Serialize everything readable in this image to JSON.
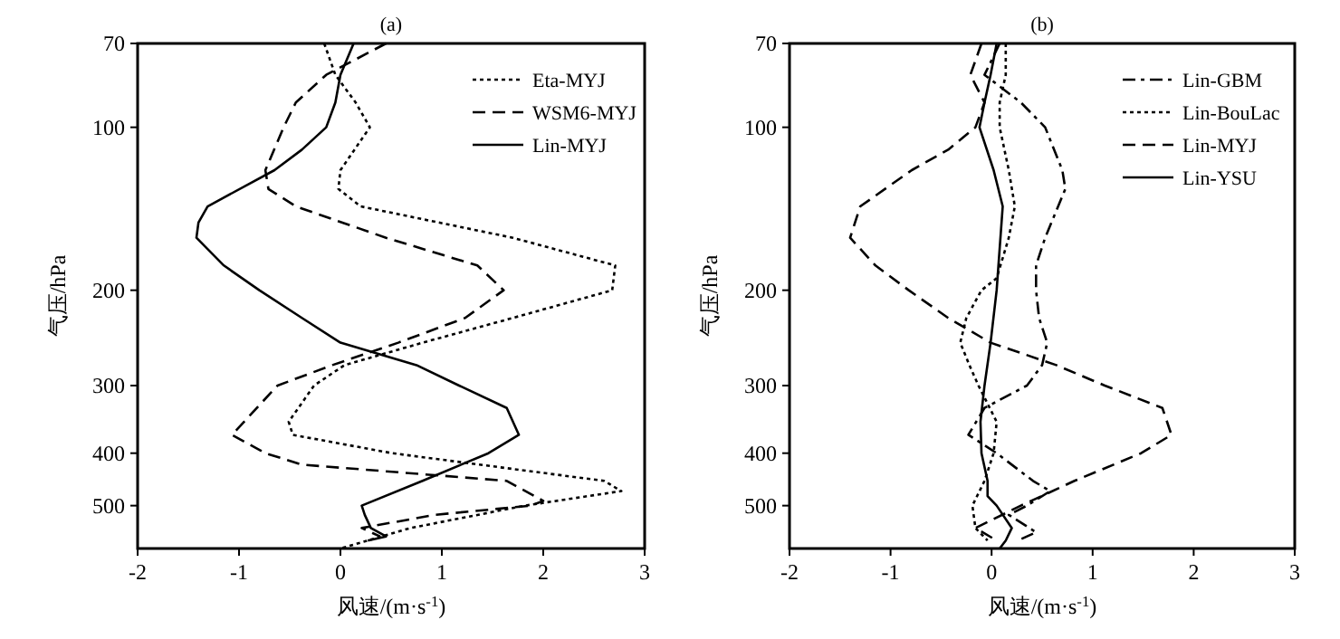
{
  "chart_data": [
    {
      "type": "line",
      "title": "(a)",
      "xlabel": "风速/(m·s$^{-1}$)",
      "ylabel": "气压/hPa",
      "xlim": [
        -2,
        3
      ],
      "xticks": [
        -2,
        -1,
        0,
        1,
        2,
        3
      ],
      "ylim": [
        600,
        70
      ],
      "yticks": [
        70,
        100,
        200,
        300,
        400,
        500
      ],
      "log": "y",
      "legend": "top right",
      "series": [
        {
          "name": "Eta-MYJ",
          "color": "#000000",
          "line_style": "dotted",
          "x": [
            -0.16,
            -0.05,
            0.15,
            0.29,
            0.0,
            -0.02,
            0.2,
            1.7,
            2.71,
            2.68,
            1.7,
            0.81,
            0.04,
            -0.26,
            -0.51,
            -0.47,
            0.51,
            2.6,
            2.77,
            1.82,
            0.69,
            0.27,
            0.0
          ],
          "values": [
            70,
            80,
            90,
            100,
            120,
            130,
            140,
            160,
            180,
            200,
            225,
            250,
            275,
            300,
            350,
            370,
            400,
            450,
            470,
            500,
            550,
            580,
            600
          ]
        },
        {
          "name": "WSM6-MYJ",
          "color": "#000000",
          "line_style": "dashed",
          "x": [
            0.45,
            -0.14,
            -0.44,
            -0.56,
            -0.74,
            -0.71,
            -0.44,
            0.45,
            1.35,
            1.61,
            1.23,
            0.57,
            -0.08,
            -0.62,
            -1.07,
            -0.74,
            -0.38,
            1.64,
            2.0,
            1.88,
            0.93,
            0.21,
            0.39
          ],
          "values": [
            70,
            80,
            90,
            100,
            120,
            130,
            140,
            160,
            180,
            200,
            225,
            250,
            275,
            300,
            370,
            400,
            420,
            450,
            490,
            500,
            520,
            550,
            570
          ]
        },
        {
          "name": "Lin-MYJ",
          "color": "#000000",
          "line_style": "solid",
          "x": [
            0.13,
            0.0,
            -0.05,
            -0.14,
            -0.38,
            -0.65,
            -1.31,
            -1.4,
            -1.42,
            -1.15,
            -0.8,
            -0.38,
            0.0,
            0.75,
            1.17,
            1.64,
            1.76,
            1.46,
            0.81,
            0.21,
            0.24,
            0.3,
            0.45,
            0.27
          ],
          "values": [
            70,
            80,
            90,
            100,
            110,
            120,
            140,
            150,
            160,
            180,
            200,
            225,
            250,
            275,
            300,
            330,
            370,
            400,
            450,
            500,
            520,
            550,
            570,
            580
          ]
        }
      ]
    },
    {
      "type": "line",
      "title": "(b)",
      "xlabel": "风速/(m·s$^{-1}$)",
      "ylabel": "气压/hPa",
      "xlim": [
        -2,
        3
      ],
      "xticks": [
        -2,
        -1,
        0,
        1,
        2,
        3
      ],
      "ylim": [
        600,
        70
      ],
      "yticks": [
        70,
        100,
        200,
        300,
        400,
        500
      ],
      "log": "y",
      "legend": "top right",
      "series": [
        {
          "name": "Lin-GBM",
          "color": "#000000",
          "line_style": "dashdot",
          "x": [
            0.08,
            -0.07,
            0.29,
            0.53,
            0.7,
            0.73,
            0.53,
            0.44,
            0.44,
            0.47,
            0.55,
            0.5,
            0.35,
            -0.07,
            -0.23,
            0.05,
            0.41,
            0.58,
            0.35,
            0.17,
            0.44,
            0.26
          ],
          "values": [
            70,
            80,
            90,
            100,
            120,
            130,
            160,
            180,
            200,
            225,
            250,
            275,
            300,
            330,
            370,
            400,
            450,
            470,
            500,
            520,
            560,
            580
          ]
        },
        {
          "name": "Lin-BouLac",
          "color": "#000000",
          "line_style": "dotted",
          "x": [
            0.14,
            0.14,
            0.08,
            0.08,
            0.17,
            0.23,
            0.17,
            0.05,
            -0.1,
            -0.25,
            -0.31,
            -0.22,
            -0.13,
            0.05,
            0.02,
            -0.07,
            -0.19,
            -0.16,
            -0.04
          ],
          "values": [
            70,
            80,
            90,
            100,
            120,
            140,
            160,
            190,
            200,
            225,
            250,
            275,
            300,
            350,
            400,
            450,
            500,
            550,
            580
          ]
        },
        {
          "name": "Lin-MYJ",
          "color": "#000000",
          "line_style": "dashed",
          "x": [
            -0.1,
            -0.21,
            -0.07,
            -0.16,
            -0.43,
            -0.79,
            -1.3,
            -1.4,
            -1.15,
            -0.82,
            -0.43,
            -0.01,
            0.64,
            1.12,
            1.69,
            1.78,
            1.48,
            0.82,
            0.29,
            -0.16,
            0.05
          ],
          "values": [
            70,
            80,
            90,
            100,
            110,
            120,
            140,
            160,
            180,
            200,
            225,
            250,
            275,
            300,
            330,
            370,
            400,
            450,
            500,
            550,
            580
          ]
        },
        {
          "name": "Lin-YSU",
          "color": "#000000",
          "line_style": "solid",
          "x": [
            0.05,
            -0.01,
            -0.07,
            -0.12,
            0.02,
            0.11,
            0.05,
            -0.01,
            -0.07,
            -0.11,
            -0.1,
            -0.04,
            -0.04,
            0.05,
            0.2,
            0.14,
            0.08
          ],
          "values": [
            70,
            80,
            90,
            100,
            120,
            140,
            200,
            250,
            300,
            350,
            400,
            450,
            480,
            500,
            550,
            580,
            600
          ]
        }
      ]
    }
  ]
}
